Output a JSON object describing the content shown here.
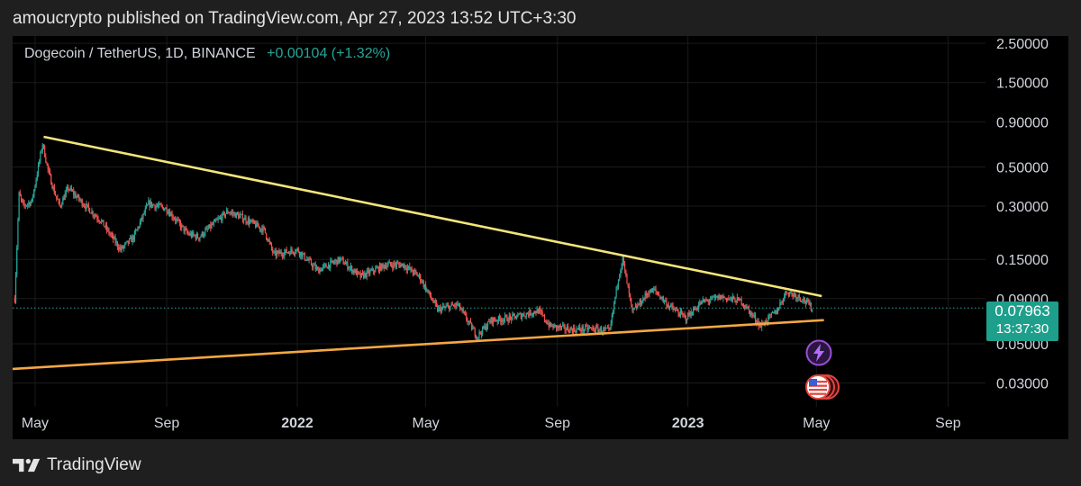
{
  "header": {
    "publisher_line": "amoucrypto published on TradingView.com, Apr 27, 2023 13:52 UTC+3:30"
  },
  "symbol": {
    "name": "Dogecoin / TetherUS, 1D, BINANCE",
    "change": "+0.00104 (+1.32%)"
  },
  "last_price": {
    "value": "0.07963",
    "countdown": "13:37:30"
  },
  "footer": {
    "brand": "TradingView"
  },
  "colors": {
    "up": "#26a69a",
    "down": "#ef5350",
    "resistance": "#f3e57a",
    "support": "#f5a742",
    "badge": "#1e9f8c",
    "grid": "#1a1a1a"
  },
  "chart_data": {
    "type": "candlestick",
    "title": "Dogecoin / TetherUS, 1D, BINANCE",
    "y_scale": "log",
    "ylim": [
      0.022,
      2.75
    ],
    "y_ticks": [
      "2.50000",
      "1.50000",
      "0.90000",
      "0.50000",
      "0.30000",
      "0.15000",
      "0.09000",
      "0.05000",
      "0.03000"
    ],
    "x_ticks": [
      "May",
      "Sep",
      "2022",
      "May",
      "Sep",
      "2023",
      "May",
      "Sep"
    ],
    "x_tick_dates": [
      "2021-05-01",
      "2021-09-01",
      "2022-01-01",
      "2022-05-01",
      "2022-09-01",
      "2023-01-01",
      "2023-05-01",
      "2023-09-01"
    ],
    "x_range": [
      "2021-04-10",
      "2023-10-06"
    ],
    "bold_ticks": [
      "2022",
      "2023"
    ],
    "series_price": [
      [
        "2021-04-12",
        0.09
      ],
      [
        "2021-04-16",
        0.35
      ],
      [
        "2021-04-20",
        0.3
      ],
      [
        "2021-04-28",
        0.32
      ],
      [
        "2021-05-04",
        0.5
      ],
      [
        "2021-05-08",
        0.68
      ],
      [
        "2021-05-13",
        0.48
      ],
      [
        "2021-05-19",
        0.36
      ],
      [
        "2021-05-24",
        0.3
      ],
      [
        "2021-06-01",
        0.38
      ],
      [
        "2021-06-15",
        0.31
      ],
      [
        "2021-07-01",
        0.25
      ],
      [
        "2021-07-20",
        0.17
      ],
      [
        "2021-08-01",
        0.2
      ],
      [
        "2021-08-15",
        0.31
      ],
      [
        "2021-09-01",
        0.29
      ],
      [
        "2021-09-20",
        0.21
      ],
      [
        "2021-10-01",
        0.2
      ],
      [
        "2021-10-28",
        0.28
      ],
      [
        "2021-11-10",
        0.26
      ],
      [
        "2021-12-01",
        0.22
      ],
      [
        "2021-12-10",
        0.16
      ],
      [
        "2022-01-01",
        0.17
      ],
      [
        "2022-01-20",
        0.13
      ],
      [
        "2022-02-10",
        0.15
      ],
      [
        "2022-03-01",
        0.12
      ],
      [
        "2022-03-25",
        0.14
      ],
      [
        "2022-04-10",
        0.14
      ],
      [
        "2022-04-25",
        0.12
      ],
      [
        "2022-05-12",
        0.078
      ],
      [
        "2022-05-31",
        0.083
      ],
      [
        "2022-06-18",
        0.055
      ],
      [
        "2022-07-01",
        0.068
      ],
      [
        "2022-07-20",
        0.07
      ],
      [
        "2022-08-14",
        0.077
      ],
      [
        "2022-08-25",
        0.063
      ],
      [
        "2022-09-15",
        0.06
      ],
      [
        "2022-10-01",
        0.061
      ],
      [
        "2022-10-20",
        0.059
      ],
      [
        "2022-10-28",
        0.12
      ],
      [
        "2022-11-01",
        0.15
      ],
      [
        "2022-11-05",
        0.11
      ],
      [
        "2022-11-10",
        0.075
      ],
      [
        "2022-11-25",
        0.098
      ],
      [
        "2022-12-01",
        0.1
      ],
      [
        "2022-12-15",
        0.081
      ],
      [
        "2022-12-30",
        0.07
      ],
      [
        "2023-01-14",
        0.086
      ],
      [
        "2023-02-01",
        0.092
      ],
      [
        "2023-02-20",
        0.087
      ],
      [
        "2023-03-10",
        0.063
      ],
      [
        "2023-03-25",
        0.077
      ],
      [
        "2023-04-03",
        0.099
      ],
      [
        "2023-04-18",
        0.09
      ],
      [
        "2023-04-27",
        0.0796
      ]
    ],
    "trendlines": [
      {
        "from": [
          "2021-05-09",
          0.74
        ],
        "to": [
          "2023-05-06",
          0.093
        ]
      },
      {
        "from": [
          "2021-04-10",
          0.036
        ],
        "to": [
          "2023-05-08",
          0.068
        ]
      }
    ],
    "last_price": 0.07963,
    "event_icons": [
      "flash-event",
      "us-flag-event"
    ]
  }
}
